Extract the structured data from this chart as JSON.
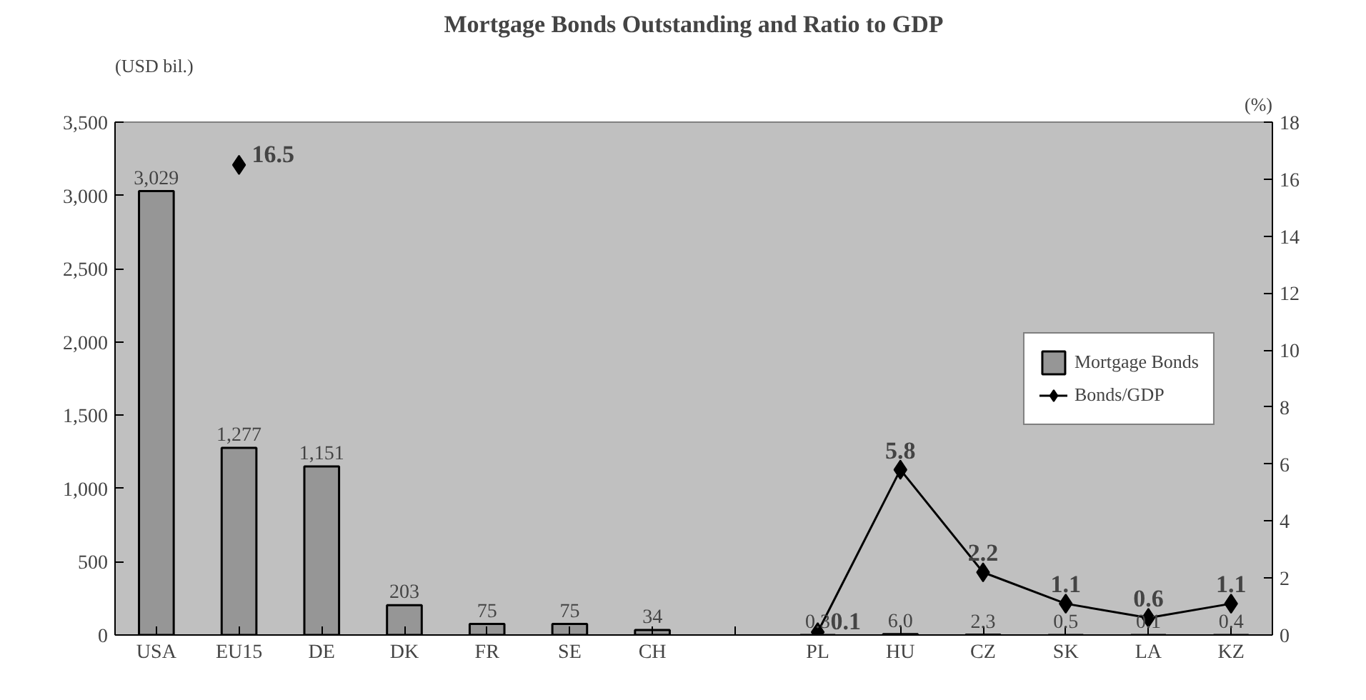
{
  "chart_data": {
    "type": "bar",
    "title": "Mortgage Bonds Outstanding and Ratio to GDP",
    "ylabel": "(USD bil.)",
    "y2label": "(%)",
    "categories": [
      "USA",
      "EU15",
      "DE",
      "DK",
      "FR",
      "SE",
      "CH",
      null,
      "PL",
      "HU",
      "CZ",
      "SK",
      "LA",
      "KZ"
    ],
    "series": [
      {
        "name": "Mortgage Bonds",
        "color": "#969696",
        "values": [
          3029,
          1277,
          1151,
          203,
          75,
          75,
          34,
          null,
          0.3,
          6.0,
          2.3,
          0.5,
          0.1,
          0.4
        ],
        "value_labels": [
          "3,029",
          "1,277",
          "1,151",
          "203",
          "75",
          "75",
          "34",
          null,
          "0.3",
          "6.0",
          "2.3",
          "0.5",
          "0.1",
          "0.4"
        ]
      },
      {
        "name": "Bonds/GDP",
        "type": "line",
        "axis": "y2",
        "color": "#000000",
        "marker": "diamond",
        "line_style": "solid",
        "values": [
          null,
          16.5,
          null,
          null,
          null,
          null,
          null,
          null,
          0.1,
          5.8,
          2.2,
          1.1,
          0.6,
          1.1
        ],
        "value_labels": [
          null,
          "16.5",
          null,
          null,
          null,
          null,
          null,
          null,
          "0.1",
          "5.8",
          "2.2",
          "1.1",
          "0.6",
          "1.1"
        ]
      }
    ],
    "ylim": [
      0,
      3500
    ],
    "yticks": [
      0,
      {
        "value": 500,
        "label": "500"
      },
      {
        "value": 1000,
        "label": "1,000"
      },
      {
        "value": 1500,
        "label": "1,500"
      },
      {
        "value": 2000,
        "label": "2,000"
      },
      {
        "value": 2500,
        "label": "2,500"
      },
      {
        "value": 3000,
        "label": "3,000"
      },
      {
        "value": 3500,
        "label": "3,500"
      }
    ],
    "y2lim": [
      0,
      18
    ],
    "y2ticks": [
      0,
      2,
      4,
      6,
      8,
      10,
      12,
      14,
      16,
      18
    ],
    "grid": false,
    "legend": "right"
  }
}
